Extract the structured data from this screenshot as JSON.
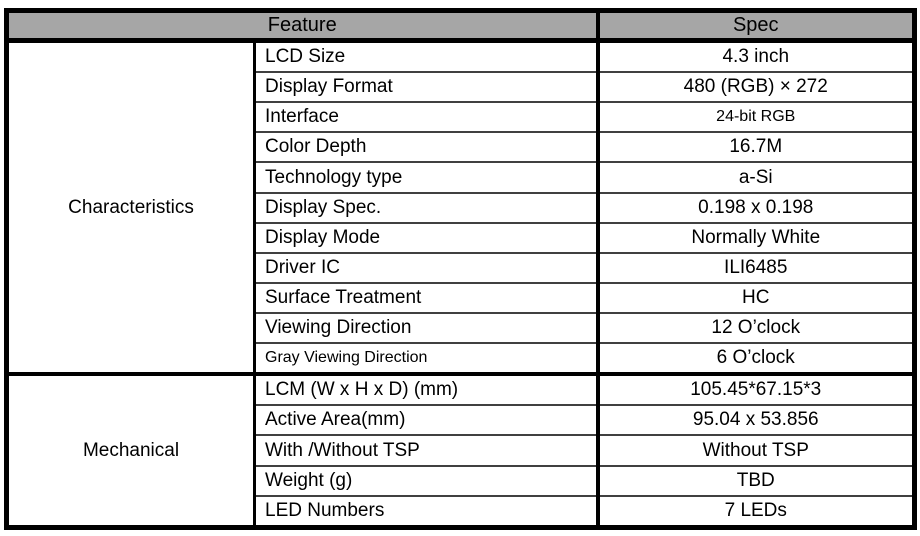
{
  "table": {
    "header": {
      "feature_label": "Feature",
      "spec_label": "Spec"
    },
    "sections": [
      {
        "category": "Characteristics",
        "rows": [
          {
            "feature": "LCD Size",
            "spec": "4.3 inch"
          },
          {
            "feature": "Display Format",
            "spec": "480 (RGB) × 272"
          },
          {
            "feature": "Interface",
            "spec": "24-bit RGB",
            "spec_small": true
          },
          {
            "feature": "Color Depth",
            "spec": "16.7M"
          },
          {
            "feature": "Technology type",
            "spec": "a-Si"
          },
          {
            "feature": "Display Spec.",
            "spec": "0.198 x 0.198"
          },
          {
            "feature": "Display Mode",
            "spec": "Normally White"
          },
          {
            "feature": "Driver IC",
            "spec": "ILI6485"
          },
          {
            "feature": "Surface Treatment",
            "spec": "HC"
          },
          {
            "feature": "Viewing Direction",
            "spec": "12 O’clock"
          },
          {
            "feature": "Gray Viewing Direction",
            "spec": "6 O’clock",
            "feature_small": true
          }
        ]
      },
      {
        "category": "Mechanical",
        "rows": [
          {
            "feature": "LCM (W x H x D) (mm)",
            "spec": "105.45*67.15*3"
          },
          {
            "feature": "Active Area(mm)",
            "spec": "95.04 x 53.856"
          },
          {
            "feature": "With /Without TSP",
            "spec": "Without TSP"
          },
          {
            "feature": "Weight (g)",
            "spec": "TBD"
          },
          {
            "feature": "LED Numbers",
            "spec": "7 LEDs"
          }
        ]
      }
    ],
    "colors": {
      "header_bg": "#a6a6a6",
      "border": "#000000",
      "row_line": "#404040",
      "page_bg": "#ffffff"
    }
  }
}
